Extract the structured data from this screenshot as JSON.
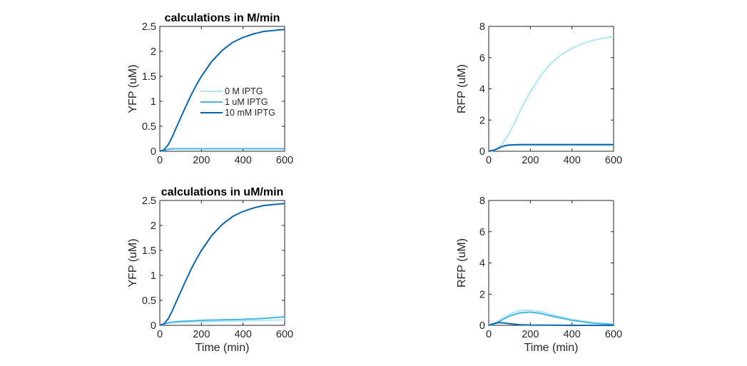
{
  "chart_data": [
    {
      "type": "line",
      "title": "calculations in M/min",
      "xlabel": "",
      "ylabel": "YFP (uM)",
      "xlim": [
        0,
        600
      ],
      "ylim": [
        0,
        2.5
      ],
      "xticks": [
        "0",
        "200",
        "400",
        "600"
      ],
      "yticks": [
        "0",
        "0.5",
        "1",
        "1.5",
        "2",
        "2.5"
      ],
      "legend": [
        "0 M IPTG",
        "1 uM IPTG",
        "10 mM IPTG"
      ],
      "legend_position": "center-left",
      "series": [
        {
          "name": "0 M IPTG",
          "color": "#aee6f6",
          "x": [
            0,
            20,
            40,
            60,
            100,
            200,
            300,
            400,
            500,
            600
          ],
          "y": [
            0,
            0.02,
            0.04,
            0.05,
            0.05,
            0.05,
            0.05,
            0.05,
            0.05,
            0.05
          ]
        },
        {
          "name": "1 uM IPTG",
          "color": "#48b5e3",
          "x": [
            0,
            20,
            40,
            60,
            100,
            200,
            300,
            400,
            500,
            600
          ],
          "y": [
            0,
            0.02,
            0.04,
            0.05,
            0.05,
            0.05,
            0.05,
            0.05,
            0.05,
            0.05
          ]
        },
        {
          "name": "10 mM IPTG",
          "color": "#0c66ae",
          "x": [
            0,
            20,
            40,
            60,
            80,
            100,
            125,
            150,
            175,
            200,
            250,
            300,
            350,
            400,
            450,
            500,
            550,
            600
          ],
          "y": [
            0,
            0.03,
            0.13,
            0.29,
            0.48,
            0.67,
            0.9,
            1.12,
            1.32,
            1.5,
            1.8,
            2.02,
            2.18,
            2.28,
            2.35,
            2.4,
            2.42,
            2.44
          ]
        }
      ]
    },
    {
      "type": "line",
      "title": "",
      "xlabel": "",
      "ylabel": "RFP (uM)",
      "xlim": [
        0,
        600
      ],
      "ylim": [
        0,
        8
      ],
      "xticks": [
        "0",
        "200",
        "400",
        "600"
      ],
      "yticks": [
        "0",
        "2",
        "4",
        "6",
        "8"
      ],
      "series": [
        {
          "color": "#aee6f6",
          "x": [
            0,
            20,
            40,
            60,
            80,
            100,
            125,
            150,
            175,
            200,
            250,
            300,
            350,
            400,
            450,
            500,
            550,
            600
          ],
          "y": [
            0,
            0.03,
            0.15,
            0.4,
            0.75,
            1.2,
            1.85,
            2.55,
            3.2,
            3.8,
            4.85,
            5.65,
            6.2,
            6.6,
            6.9,
            7.1,
            7.25,
            7.35
          ]
        },
        {
          "color": "#48b5e3",
          "x": [
            0,
            20,
            40,
            60,
            80,
            100,
            150,
            200,
            300,
            400,
            500,
            600
          ],
          "y": [
            0,
            0.05,
            0.15,
            0.28,
            0.36,
            0.4,
            0.42,
            0.42,
            0.42,
            0.42,
            0.42,
            0.42
          ]
        },
        {
          "color": "#0c66ae",
          "x": [
            0,
            20,
            40,
            60,
            80,
            100,
            150,
            200,
            300,
            400,
            500,
            600
          ],
          "y": [
            0,
            0.05,
            0.15,
            0.28,
            0.36,
            0.4,
            0.42,
            0.42,
            0.42,
            0.42,
            0.42,
            0.42
          ]
        }
      ]
    },
    {
      "type": "line",
      "title": "calculations in uM/min",
      "xlabel": "Time (min)",
      "ylabel": "YFP (uM)",
      "xlim": [
        0,
        600
      ],
      "ylim": [
        0,
        2.5
      ],
      "xticks": [
        "0",
        "200",
        "400",
        "600"
      ],
      "yticks": [
        "0",
        "0.5",
        "1",
        "1.5",
        "2",
        "2.5"
      ],
      "series": [
        {
          "color": "#aee6f6",
          "x": [
            0,
            20,
            50,
            100,
            200,
            300,
            400,
            500,
            600
          ],
          "y": [
            0,
            0.02,
            0.05,
            0.06,
            0.07,
            0.08,
            0.09,
            0.1,
            0.11
          ]
        },
        {
          "color": "#48b5e3",
          "x": [
            0,
            20,
            50,
            100,
            200,
            300,
            400,
            500,
            600
          ],
          "y": [
            0,
            0.03,
            0.06,
            0.08,
            0.1,
            0.11,
            0.12,
            0.14,
            0.17
          ]
        },
        {
          "color": "#0c66ae",
          "x": [
            0,
            20,
            40,
            60,
            80,
            100,
            125,
            150,
            175,
            200,
            250,
            300,
            350,
            400,
            450,
            500,
            550,
            600
          ],
          "y": [
            0,
            0.03,
            0.13,
            0.29,
            0.48,
            0.67,
            0.9,
            1.12,
            1.32,
            1.5,
            1.8,
            2.02,
            2.18,
            2.28,
            2.35,
            2.4,
            2.42,
            2.44
          ]
        }
      ]
    },
    {
      "type": "line",
      "title": "",
      "xlabel": "Time (min)",
      "ylabel": "RFP (uM)",
      "xlim": [
        0,
        600
      ],
      "ylim": [
        0,
        8
      ],
      "xticks": [
        "0",
        "200",
        "400",
        "600"
      ],
      "yticks": [
        "0",
        "2",
        "4",
        "6",
        "8"
      ],
      "series": [
        {
          "color": "#aee6f6",
          "x": [
            0,
            20,
            50,
            100,
            150,
            200,
            250,
            300,
            400,
            500,
            600
          ],
          "y": [
            0,
            0.06,
            0.3,
            0.72,
            0.95,
            0.98,
            0.88,
            0.7,
            0.38,
            0.18,
            0.08
          ]
        },
        {
          "color": "#48b5e3",
          "x": [
            0,
            20,
            50,
            100,
            150,
            200,
            250,
            300,
            400,
            500,
            600
          ],
          "y": [
            0,
            0.05,
            0.25,
            0.6,
            0.8,
            0.85,
            0.76,
            0.6,
            0.32,
            0.14,
            0.06
          ]
        },
        {
          "color": "#0c66ae",
          "x": [
            0,
            20,
            50,
            80,
            100,
            150,
            200,
            300,
            400,
            600
          ],
          "y": [
            0,
            0.1,
            0.18,
            0.14,
            0.1,
            0.04,
            0.02,
            0.01,
            0,
            0
          ]
        }
      ]
    }
  ]
}
